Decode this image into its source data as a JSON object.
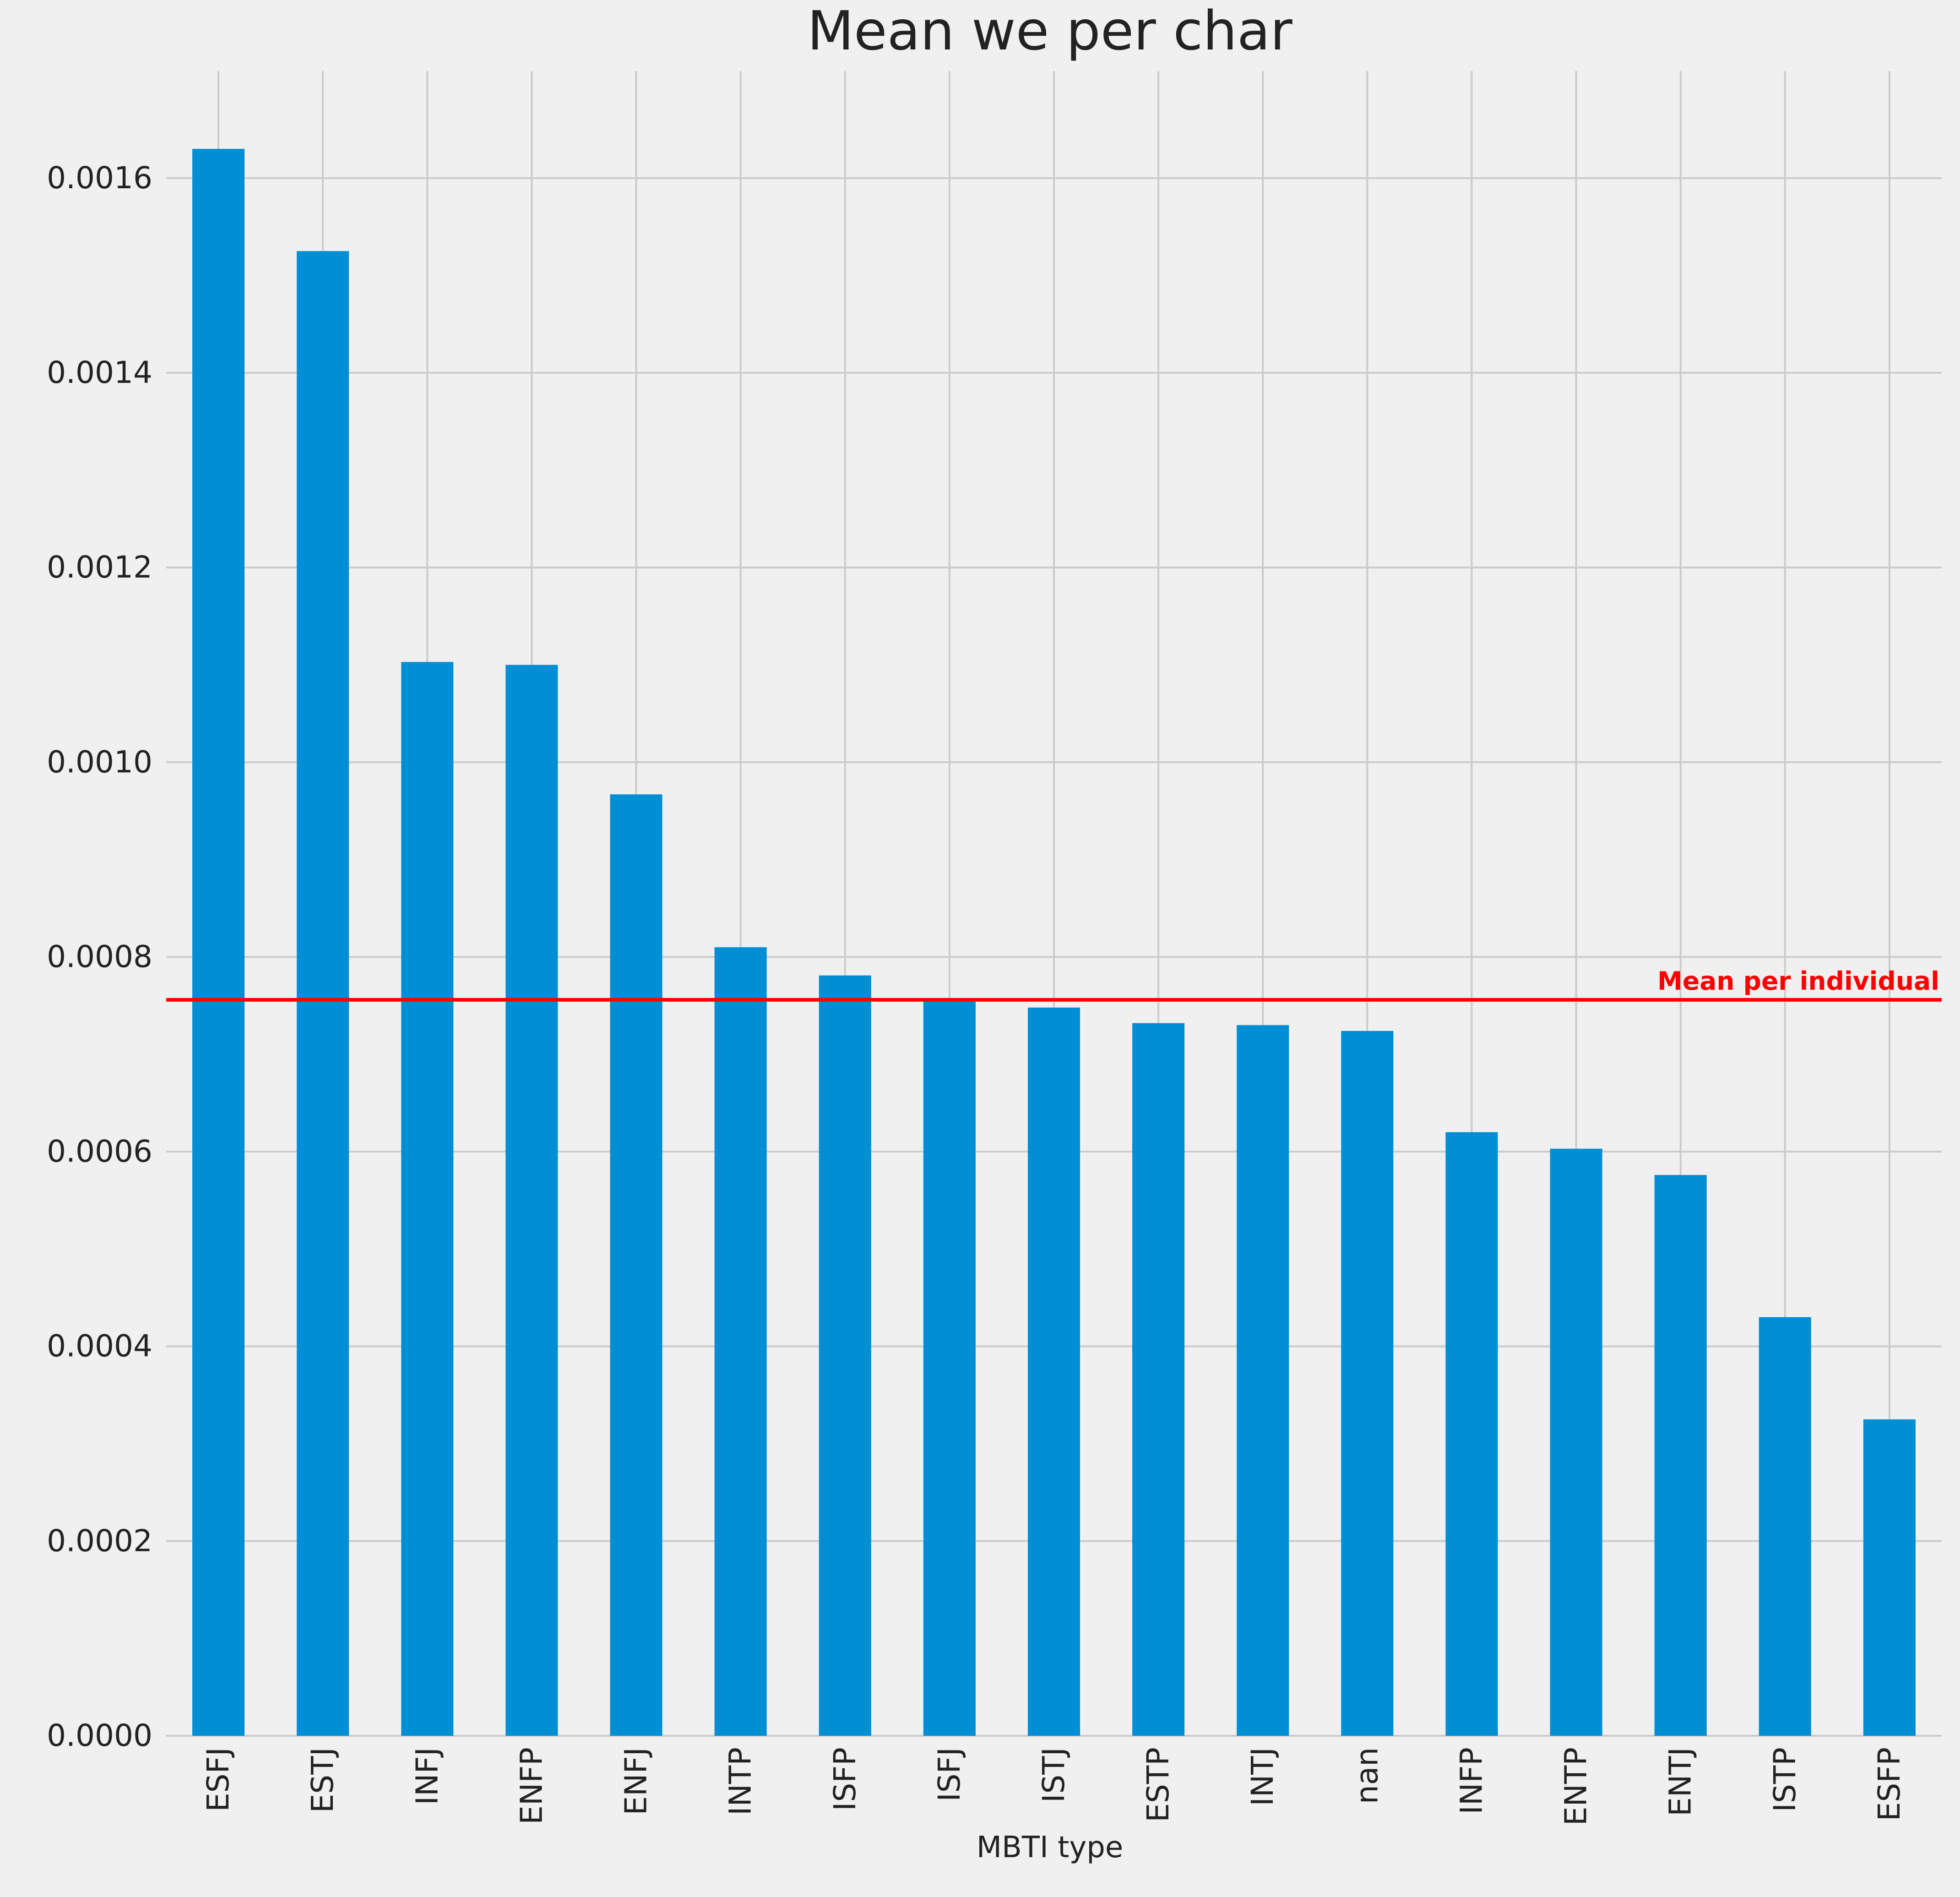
{
  "chart_data": {
    "type": "bar",
    "title": "Mean we per char",
    "xlabel": "MBTI type",
    "ylabel": "",
    "categories": [
      "ESFJ",
      "ESTJ",
      "INFJ",
      "ENFP",
      "ENFJ",
      "INTP",
      "ISFP",
      "ISFJ",
      "ISTJ",
      "ESTP",
      "INTJ",
      "nan",
      "INFP",
      "ENTP",
      "ENTJ",
      "ISTP",
      "ESFP"
    ],
    "values": [
      0.00163,
      0.001525,
      0.001103,
      0.0011,
      0.000967,
      0.00081,
      0.000781,
      0.000756,
      0.000748,
      0.000732,
      0.00073,
      0.000724,
      0.00062,
      0.000603,
      0.000576,
      0.00043,
      0.000325
    ],
    "ylim": [
      0,
      0.00171
    ],
    "yticks": [
      0.0,
      0.0002,
      0.0004,
      0.0006,
      0.0008,
      0.001,
      0.0012,
      0.0014,
      0.0016
    ],
    "ytick_labels": [
      "0.0000",
      "0.0002",
      "0.0004",
      "0.0006",
      "0.0008",
      "0.0010",
      "0.0012",
      "0.0014",
      "0.0016"
    ],
    "grid": true,
    "bar_color": "#008fd5",
    "reference_line": {
      "value": 0.000756,
      "label": "Mean per individual",
      "color": "#ff0000"
    }
  }
}
